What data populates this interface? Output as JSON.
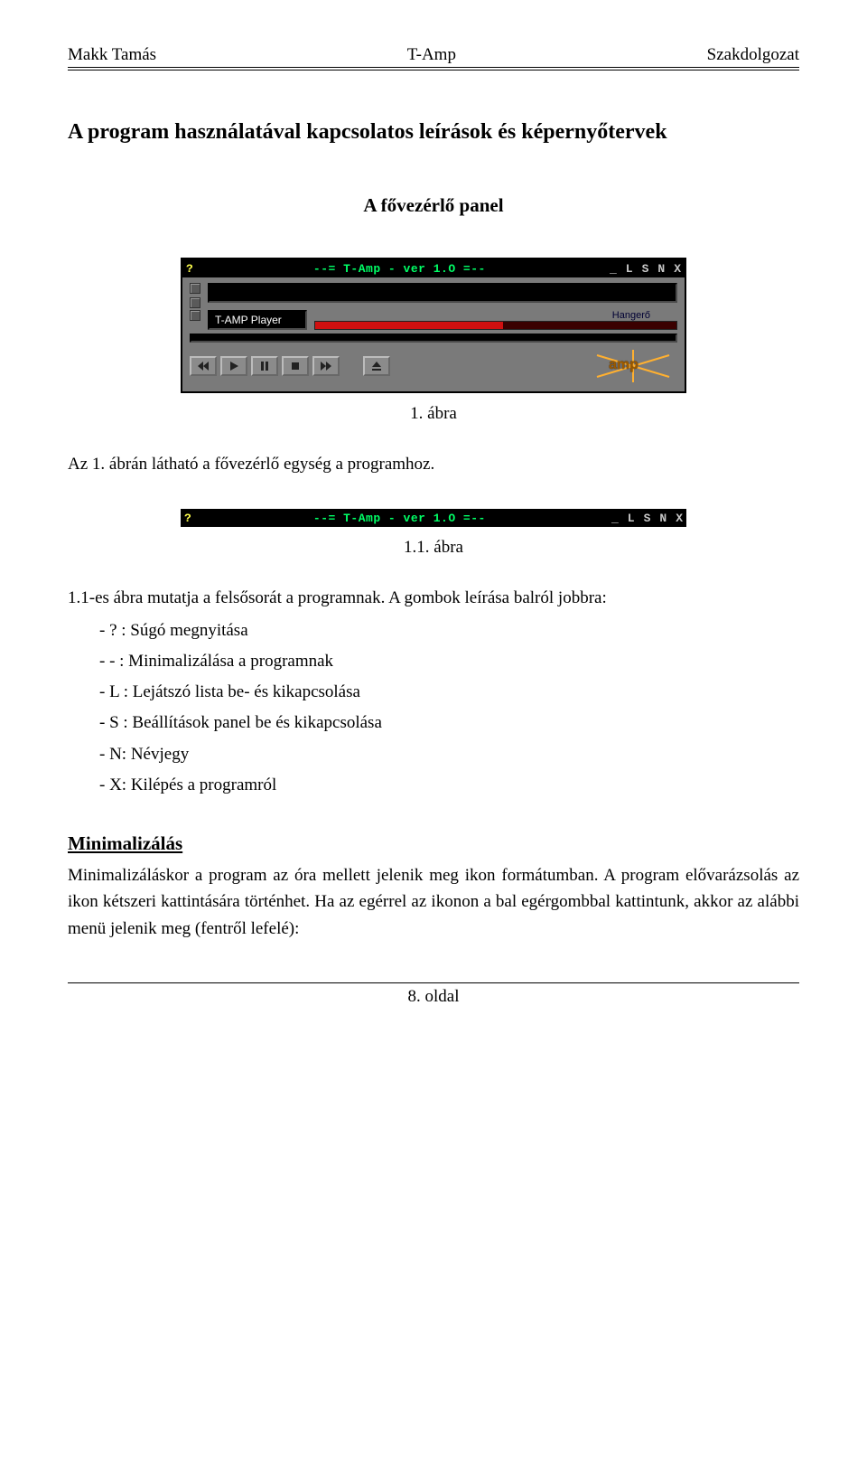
{
  "doc": {
    "header": {
      "left": "Makk Tamás",
      "center": "T-Amp",
      "right": "Szakdolgozat"
    },
    "title": "A program használatával kapcsolatos leírások és képernyőtervek",
    "subtitle": "A fővezérlő panel",
    "figure1_caption": "1. ábra",
    "para1": "Az 1. ábrán látható a fővezérlő egység a programhoz.",
    "figure11_caption": "1.1. ábra",
    "para2": "1.1-es ábra mutatja a felsősorát a programnak. A gombok leírása balról jobbra:",
    "list": [
      "? : Súgó megnyitása",
      "- : Minimalizálása a programnak",
      "L : Lejátszó lista be- és kikapcsolása",
      "S : Beállítások panel be és kikapcsolása",
      "N: Névjegy",
      "X: Kilépés a programról"
    ],
    "min_heading": "Minimalizálás",
    "para3": "Minimalizáláskor a program az óra mellett jelenik meg ikon formátumban. A program elővarázsolás az ikon kétszeri kattintására történhet. Ha az egérrel az ikonon a bal egérgombbal kattintunk, akkor az alábbi menü jelenik meg (fentről lefelé):",
    "footer": "8. oldal"
  },
  "player": {
    "titlebar": {
      "help_glyph": "?",
      "title": "--= T-Amp - ver 1.O =--",
      "buttons": [
        "_",
        "L",
        "S",
        "N",
        "X"
      ],
      "bg_color": "#000000",
      "title_color": "#00ff66",
      "help_color": "#ffff4d",
      "btn_color": "#c8c8c8"
    },
    "body": {
      "bg_color": "#7a7a7a",
      "label": "T-AMP Player",
      "volume_label": "Hangerő",
      "volume_pct": 52,
      "volume_fg": "#d01010",
      "volume_bg": "#3a0000",
      "logo_text": "amp",
      "logo_text_color": "#9c5a00",
      "logo_flare_color": "#ffb030"
    },
    "controls": [
      "prev",
      "play",
      "pause",
      "stop",
      "next",
      "gap",
      "eject"
    ]
  }
}
